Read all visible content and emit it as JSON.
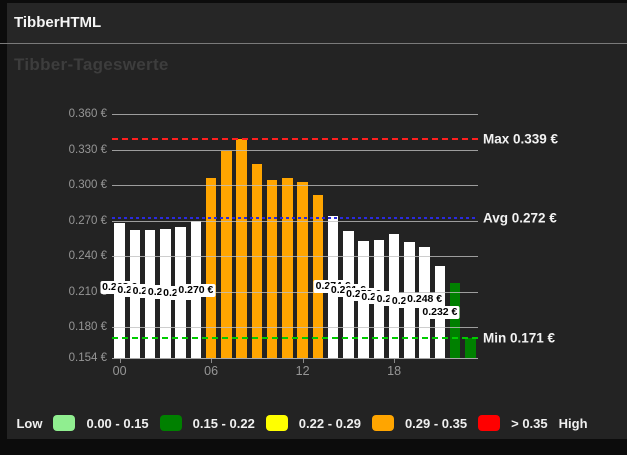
{
  "window": {
    "title": "TibberHTML"
  },
  "page": {
    "heading": "Tibber-Tageswerte"
  },
  "chart_data": {
    "type": "bar",
    "title": "Tibber-Tageswerte",
    "categories": [
      "00",
      "01",
      "02",
      "03",
      "04",
      "05",
      "06",
      "07",
      "08",
      "09",
      "10",
      "11",
      "12",
      "13",
      "14",
      "15",
      "16",
      "17",
      "18",
      "19",
      "20",
      "21",
      "22",
      "23"
    ],
    "values": [
      0.268,
      0.262,
      0.262,
      0.263,
      0.265,
      0.27,
      0.306,
      0.329,
      0.339,
      0.318,
      0.304,
      0.306,
      0.303,
      0.292,
      0.274,
      0.261,
      0.253,
      0.254,
      0.259,
      0.252,
      0.248,
      0.232,
      0.217,
      0.171
    ],
    "bar_colors": [
      "#ffffff",
      "#ffffff",
      "#ffffff",
      "#ffffff",
      "#ffffff",
      "#ffffff",
      "#ffa500",
      "#ffa500",
      "#ffa500",
      "#ffa500",
      "#ffa500",
      "#ffa500",
      "#ffa500",
      "#ffa500",
      "#ffffff",
      "#ffffff",
      "#ffffff",
      "#ffffff",
      "#ffffff",
      "#ffffff",
      "#ffffff",
      "#ffffff",
      "#008000",
      "#008000"
    ],
    "bar_labels": [
      "0.268 €",
      "0.262 €",
      "0.262 €",
      "0.263 €",
      "0.265 €",
      "0.270 €",
      null,
      null,
      null,
      null,
      null,
      null,
      null,
      null,
      "0.274 €",
      "0.261 €",
      "0.253 €",
      "0.254 €",
      "0.259 €",
      "0.252 €",
      "0.248 €",
      "0.232 €",
      null,
      null
    ],
    "ylim": [
      0.154,
      0.36
    ],
    "grid": true,
    "yticks": [
      {
        "value": 0.36,
        "label": "0.360 €"
      },
      {
        "value": 0.33,
        "label": "0.330 €"
      },
      {
        "value": 0.3,
        "label": "0.300 €"
      },
      {
        "value": 0.27,
        "label": "0.270 €"
      },
      {
        "value": 0.24,
        "label": "0.240 €"
      },
      {
        "value": 0.21,
        "label": "0.210 €"
      },
      {
        "value": 0.18,
        "label": "0.180 €"
      },
      {
        "value": 0.154,
        "label": "0.154 €"
      }
    ],
    "xticks": [
      {
        "hour": 0,
        "label": "00"
      },
      {
        "hour": 6,
        "label": "06"
      },
      {
        "hour": 12,
        "label": "12"
      },
      {
        "hour": 18,
        "label": "18"
      }
    ],
    "ref_lines": [
      {
        "name": "max",
        "value": 0.339,
        "label": "Max 0.339 €",
        "color": "#ff1f1f",
        "style": "dashed"
      },
      {
        "name": "avg",
        "value": 0.272,
        "label": "Avg 0.272 €",
        "color": "#2a2ae0",
        "style": "dotted"
      },
      {
        "name": "min",
        "value": 0.171,
        "label": "Min 0.171 €",
        "color": "#00cc00",
        "style": "dashed"
      }
    ]
  },
  "legend": {
    "low_label": "Low",
    "high_label": "High",
    "items": [
      {
        "label": "0.00 - 0.15",
        "color": "#90ee90"
      },
      {
        "label": "0.15 - 0.22",
        "color": "#008000"
      },
      {
        "label": "0.22 - 0.29",
        "color": "#ffff00"
      },
      {
        "label": "0.29 - 0.35",
        "color": "#ffa500"
      },
      {
        "label": "> 0.35",
        "color": "#ff0000"
      }
    ]
  }
}
